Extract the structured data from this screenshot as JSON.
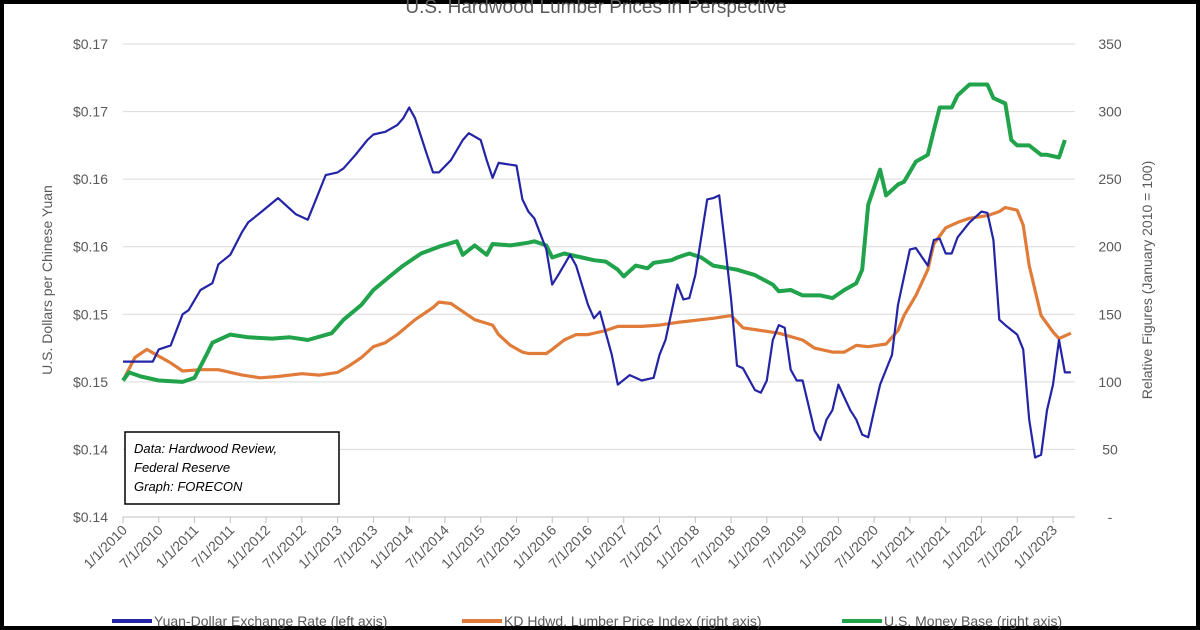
{
  "chart_data": {
    "type": "line",
    "title": "U.S. Hardwood Lumber Prices in Perspective",
    "ylabel_left": "U.S. Dollars per Chinese Yuan",
    "ylabel_right": "Relative Figures (January 2010 = 100)",
    "ylim_left": [
      0.135,
      0.17
    ],
    "ylim_right": [
      0,
      350
    ],
    "left_tick_labels": [
      "$0.17",
      "$0.17",
      "$0.16",
      "$0.16",
      "$0.15",
      "$0.15",
      "$0.14",
      "$0.14"
    ],
    "right_tick_labels": [
      "350",
      "300",
      "250",
      "200",
      "150",
      "100",
      "50",
      "-"
    ],
    "x_tick_labels": [
      "1/1/2010",
      "7/1/2010",
      "1/1/2011",
      "7/1/2011",
      "1/1/2012",
      "7/1/2012",
      "1/1/2013",
      "7/1/2013",
      "1/1/2014",
      "7/1/2014",
      "1/1/2015",
      "7/1/2015",
      "1/1/2016",
      "7/1/2016",
      "1/1/2017",
      "7/1/2017",
      "1/1/2018",
      "7/1/2018",
      "1/1/2019",
      "7/1/2019",
      "1/1/2020",
      "7/1/2020",
      "1/1/2021",
      "7/1/2021",
      "1/1/2022",
      "7/1/2022",
      "1/1/2023"
    ],
    "grid": true,
    "legend_placement": "bottom",
    "annotation": [
      "Data: Hardwood Review,",
      "Federal Reserve",
      "Graph: FORECON"
    ],
    "series": [
      {
        "name": "Yuan-Dollar Exchange Rate (left axis)",
        "axis": "left",
        "color": "#2424a6",
        "points": [
          [
            "2010-01",
            0.1465
          ],
          [
            "2010-06",
            0.1465
          ],
          [
            "2010-07",
            0.1474
          ],
          [
            "2010-09",
            0.1477
          ],
          [
            "2010-11",
            0.15
          ],
          [
            "2010-12",
            0.1503
          ],
          [
            "2011-02",
            0.1518
          ],
          [
            "2011-04",
            0.1523
          ],
          [
            "2011-05",
            0.1537
          ],
          [
            "2011-07",
            0.1544
          ],
          [
            "2011-09",
            0.1561
          ],
          [
            "2011-10",
            0.1568
          ],
          [
            "2011-12",
            0.1575
          ],
          [
            "2012-03",
            0.1586
          ],
          [
            "2012-04",
            0.1582
          ],
          [
            "2012-06",
            0.1574
          ],
          [
            "2012-08",
            0.157
          ],
          [
            "2012-09",
            0.1581
          ],
          [
            "2012-11",
            0.1603
          ],
          [
            "2013-01",
            0.1605
          ],
          [
            "2013-02",
            0.1608
          ],
          [
            "2013-04",
            0.1618
          ],
          [
            "2013-06",
            0.1629
          ],
          [
            "2013-07",
            0.1633
          ],
          [
            "2013-09",
            0.1635
          ],
          [
            "2013-11",
            0.164
          ],
          [
            "2013-12",
            0.1645
          ],
          [
            "2014-01",
            0.1653
          ],
          [
            "2014-02",
            0.1645
          ],
          [
            "2014-04",
            0.1618
          ],
          [
            "2014-05",
            0.1605
          ],
          [
            "2014-06",
            0.1605
          ],
          [
            "2014-08",
            0.1614
          ],
          [
            "2014-10",
            0.1629
          ],
          [
            "2014-11",
            0.1634
          ],
          [
            "2015-01",
            0.1629
          ],
          [
            "2015-02",
            0.1614
          ],
          [
            "2015-03",
            0.1601
          ],
          [
            "2015-04",
            0.1612
          ],
          [
            "2015-07",
            0.161
          ],
          [
            "2015-08",
            0.1585
          ],
          [
            "2015-09",
            0.1576
          ],
          [
            "2015-10",
            0.1571
          ],
          [
            "2015-12",
            0.1548
          ],
          [
            "2016-01",
            0.1522
          ],
          [
            "2016-02",
            0.1529
          ],
          [
            "2016-04",
            0.1544
          ],
          [
            "2016-05",
            0.1536
          ],
          [
            "2016-07",
            0.1507
          ],
          [
            "2016-08",
            0.1497
          ],
          [
            "2016-09",
            0.1502
          ],
          [
            "2016-11",
            0.147
          ],
          [
            "2016-12",
            0.1448
          ],
          [
            "2017-02",
            0.1455
          ],
          [
            "2017-04",
            0.1451
          ],
          [
            "2017-06",
            0.1453
          ],
          [
            "2017-07",
            0.147
          ],
          [
            "2017-08",
            0.1481
          ],
          [
            "2017-10",
            0.1522
          ],
          [
            "2017-11",
            0.1511
          ],
          [
            "2017-12",
            0.1512
          ],
          [
            "2018-01",
            0.1529
          ],
          [
            "2018-03",
            0.1585
          ],
          [
            "2018-04",
            0.1586
          ],
          [
            "2018-05",
            0.1588
          ],
          [
            "2018-06",
            0.1551
          ],
          [
            "2018-07",
            0.1511
          ],
          [
            "2018-08",
            0.1462
          ],
          [
            "2018-09",
            0.146
          ],
          [
            "2018-11",
            0.1444
          ],
          [
            "2018-12",
            0.1442
          ],
          [
            "2019-01",
            0.1451
          ],
          [
            "2019-02",
            0.1481
          ],
          [
            "2019-03",
            0.1492
          ],
          [
            "2019-04",
            0.149
          ],
          [
            "2019-05",
            0.1459
          ],
          [
            "2019-06",
            0.1451
          ],
          [
            "2019-07",
            0.1451
          ],
          [
            "2019-09",
            0.1414
          ],
          [
            "2019-10",
            0.1407
          ],
          [
            "2019-11",
            0.1422
          ],
          [
            "2019-12",
            0.1429
          ],
          [
            "2020-01",
            0.1448
          ],
          [
            "2020-03",
            0.1429
          ],
          [
            "2020-04",
            0.1422
          ],
          [
            "2020-05",
            0.1411
          ],
          [
            "2020-06",
            0.1409
          ],
          [
            "2020-07",
            0.1429
          ],
          [
            "2020-08",
            0.1448
          ],
          [
            "2020-10",
            0.147
          ],
          [
            "2020-11",
            0.1507
          ],
          [
            "2021-01",
            0.1548
          ],
          [
            "2021-02",
            0.1549
          ],
          [
            "2021-04",
            0.1536
          ],
          [
            "2021-05",
            0.1555
          ],
          [
            "2021-06",
            0.1556
          ],
          [
            "2021-07",
            0.1545
          ],
          [
            "2021-08",
            0.1545
          ],
          [
            "2021-09",
            0.1557
          ],
          [
            "2021-11",
            0.1568
          ],
          [
            "2022-01",
            0.1576
          ],
          [
            "2022-02",
            0.1575
          ],
          [
            "2022-03",
            0.1555
          ],
          [
            "2022-04",
            0.1496
          ],
          [
            "2022-05",
            0.1492
          ],
          [
            "2022-07",
            0.1485
          ],
          [
            "2022-08",
            0.1474
          ],
          [
            "2022-09",
            0.1422
          ],
          [
            "2022-10",
            0.1394
          ],
          [
            "2022-11",
            0.1396
          ],
          [
            "2022-12",
            0.1429
          ],
          [
            "2023-01",
            0.1448
          ],
          [
            "2023-02",
            0.1481
          ],
          [
            "2023-03",
            0.1457
          ],
          [
            "2023-04",
            0.1457
          ]
        ]
      },
      {
        "name": "KD Hdwd. Lumber Price Index (right axis)",
        "axis": "right",
        "color": "#e07b39",
        "points": [
          [
            "2010-01",
            101
          ],
          [
            "2010-03",
            118
          ],
          [
            "2010-05",
            124
          ],
          [
            "2010-07",
            119
          ],
          [
            "2010-09",
            114
          ],
          [
            "2010-11",
            108
          ],
          [
            "2011-02",
            109
          ],
          [
            "2011-05",
            109
          ],
          [
            "2011-09",
            105
          ],
          [
            "2011-12",
            103
          ],
          [
            "2012-03",
            104
          ],
          [
            "2012-07",
            106
          ],
          [
            "2012-10",
            105
          ],
          [
            "2013-01",
            107
          ],
          [
            "2013-03",
            112
          ],
          [
            "2013-05",
            118
          ],
          [
            "2013-07",
            126
          ],
          [
            "2013-09",
            129
          ],
          [
            "2013-11",
            135
          ],
          [
            "2014-02",
            146
          ],
          [
            "2014-05",
            155
          ],
          [
            "2014-06",
            159
          ],
          [
            "2014-08",
            158
          ],
          [
            "2014-10",
            152
          ],
          [
            "2014-12",
            146
          ],
          [
            "2015-03",
            142
          ],
          [
            "2015-04",
            135
          ],
          [
            "2015-06",
            127
          ],
          [
            "2015-08",
            122
          ],
          [
            "2015-09",
            121
          ],
          [
            "2015-12",
            121
          ],
          [
            "2016-01",
            124
          ],
          [
            "2016-03",
            131
          ],
          [
            "2016-05",
            135
          ],
          [
            "2016-07",
            135
          ],
          [
            "2016-10",
            138
          ],
          [
            "2016-12",
            141
          ],
          [
            "2017-04",
            141
          ],
          [
            "2017-07",
            142
          ],
          [
            "2017-10",
            144
          ],
          [
            "2018-02",
            146
          ],
          [
            "2018-04",
            147
          ],
          [
            "2018-07",
            149
          ],
          [
            "2018-09",
            140
          ],
          [
            "2018-12",
            138
          ],
          [
            "2019-03",
            136
          ],
          [
            "2019-07",
            131
          ],
          [
            "2019-09",
            125
          ],
          [
            "2019-12",
            122
          ],
          [
            "2020-02",
            122
          ],
          [
            "2020-04",
            127
          ],
          [
            "2020-06",
            126
          ],
          [
            "2020-09",
            128
          ],
          [
            "2020-11",
            138
          ],
          [
            "2020-12",
            149
          ],
          [
            "2021-02",
            164
          ],
          [
            "2021-04",
            183
          ],
          [
            "2021-05",
            202
          ],
          [
            "2021-07",
            214
          ],
          [
            "2021-09",
            218
          ],
          [
            "2021-11",
            221
          ],
          [
            "2022-02",
            223
          ],
          [
            "2022-04",
            226
          ],
          [
            "2022-05",
            229
          ],
          [
            "2022-07",
            227
          ],
          [
            "2022-08",
            216
          ],
          [
            "2022-09",
            186
          ],
          [
            "2022-11",
            149
          ],
          [
            "2023-01",
            137
          ],
          [
            "2023-02",
            132
          ],
          [
            "2023-04",
            136
          ]
        ]
      },
      {
        "name": "U.S. Money Base (right axis)",
        "axis": "right",
        "color": "#21a34b",
        "points": [
          [
            "2010-01",
            101
          ],
          [
            "2010-02",
            107
          ],
          [
            "2010-04",
            104
          ],
          [
            "2010-07",
            101
          ],
          [
            "2010-11",
            100
          ],
          [
            "2011-01",
            103
          ],
          [
            "2011-03",
            120
          ],
          [
            "2011-04",
            129
          ],
          [
            "2011-07",
            135
          ],
          [
            "2011-10",
            133
          ],
          [
            "2012-02",
            132
          ],
          [
            "2012-05",
            133
          ],
          [
            "2012-08",
            131
          ],
          [
            "2012-12",
            136
          ],
          [
            "2013-02",
            146
          ],
          [
            "2013-05",
            157
          ],
          [
            "2013-07",
            168
          ],
          [
            "2013-10",
            179
          ],
          [
            "2013-12",
            186
          ],
          [
            "2014-03",
            195
          ],
          [
            "2014-06",
            200
          ],
          [
            "2014-09",
            204
          ],
          [
            "2014-10",
            194
          ],
          [
            "2014-12",
            201
          ],
          [
            "2015-02",
            194
          ],
          [
            "2015-03",
            202
          ],
          [
            "2015-06",
            201
          ],
          [
            "2015-09",
            203
          ],
          [
            "2015-10",
            204
          ],
          [
            "2015-12",
            201
          ],
          [
            "2016-01",
            192
          ],
          [
            "2016-03",
            195
          ],
          [
            "2016-06",
            192
          ],
          [
            "2016-08",
            190
          ],
          [
            "2016-10",
            189
          ],
          [
            "2016-12",
            183
          ],
          [
            "2017-01",
            178
          ],
          [
            "2017-03",
            186
          ],
          [
            "2017-05",
            184
          ],
          [
            "2017-06",
            188
          ],
          [
            "2017-09",
            190
          ],
          [
            "2017-10",
            192
          ],
          [
            "2017-12",
            195
          ],
          [
            "2018-02",
            192
          ],
          [
            "2018-04",
            186
          ],
          [
            "2018-08",
            183
          ],
          [
            "2018-11",
            179
          ],
          [
            "2019-02",
            172
          ],
          [
            "2019-03",
            167
          ],
          [
            "2019-05",
            168
          ],
          [
            "2019-07",
            164
          ],
          [
            "2019-10",
            164
          ],
          [
            "2019-12",
            162
          ],
          [
            "2020-02",
            168
          ],
          [
            "2020-04",
            173
          ],
          [
            "2020-05",
            183
          ],
          [
            "2020-06",
            231
          ],
          [
            "2020-08",
            257
          ],
          [
            "2020-09",
            238
          ],
          [
            "2020-11",
            246
          ],
          [
            "2020-12",
            248
          ],
          [
            "2021-02",
            263
          ],
          [
            "2021-04",
            268
          ],
          [
            "2021-05",
            286
          ],
          [
            "2021-06",
            303
          ],
          [
            "2021-08",
            303
          ],
          [
            "2021-09",
            312
          ],
          [
            "2021-11",
            320
          ],
          [
            "2022-02",
            320
          ],
          [
            "2022-03",
            310
          ],
          [
            "2022-05",
            306
          ],
          [
            "2022-06",
            279
          ],
          [
            "2022-07",
            275
          ],
          [
            "2022-09",
            275
          ],
          [
            "2022-11",
            268
          ],
          [
            "2022-12",
            268
          ],
          [
            "2023-02",
            266
          ],
          [
            "2023-03",
            279
          ]
        ]
      }
    ]
  }
}
